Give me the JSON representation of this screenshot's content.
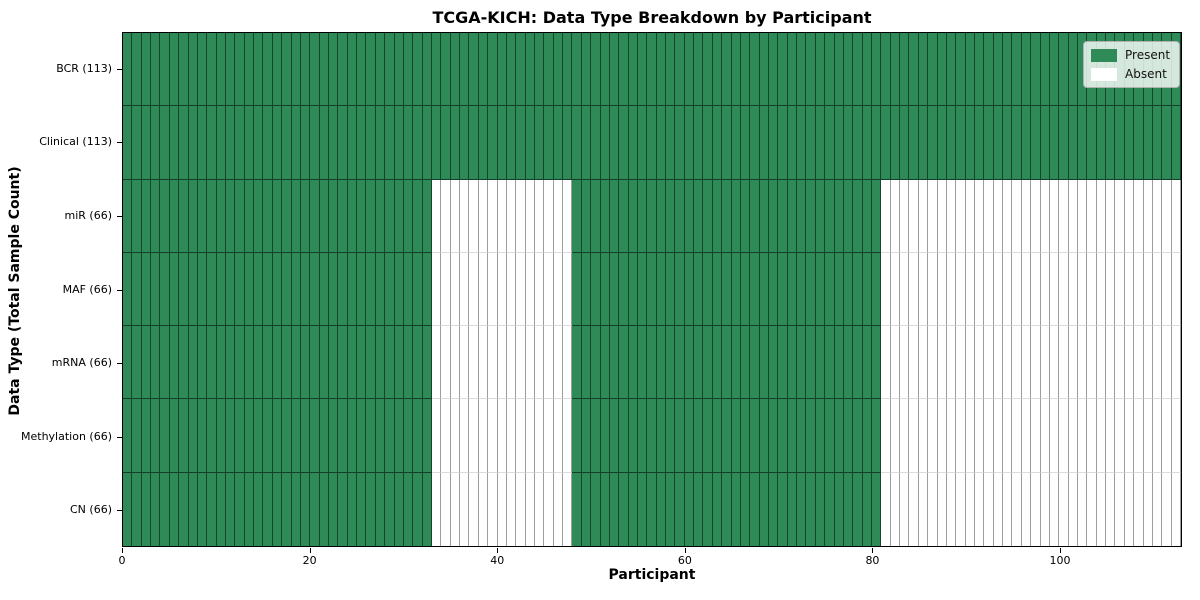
{
  "chart_data": {
    "type": "heatmap",
    "title": "TCGA-KICH: Data Type Breakdown by Participant",
    "xlabel": "Participant",
    "ylabel": "Data Type (Total Sample Count)",
    "n_participants": 113,
    "x_ticks": [
      0,
      20,
      40,
      60,
      80,
      100
    ],
    "rows": [
      {
        "name": "BCR",
        "label": "BCR (113)",
        "total_samples": 113,
        "present_ranges": [
          [
            0,
            113
          ]
        ]
      },
      {
        "name": "Clinical",
        "label": "Clinical (113)",
        "total_samples": 113,
        "present_ranges": [
          [
            0,
            113
          ]
        ]
      },
      {
        "name": "miR",
        "label": "miR (66)",
        "total_samples": 66,
        "present_ranges": [
          [
            0,
            33
          ],
          [
            48,
            81
          ]
        ]
      },
      {
        "name": "MAF",
        "label": "MAF (66)",
        "total_samples": 66,
        "present_ranges": [
          [
            0,
            33
          ],
          [
            48,
            81
          ]
        ]
      },
      {
        "name": "mRNA",
        "label": "mRNA (66)",
        "total_samples": 66,
        "present_ranges": [
          [
            0,
            33
          ],
          [
            48,
            81
          ]
        ]
      },
      {
        "name": "Methylation",
        "label": "Methylation (66)",
        "total_samples": 66,
        "present_ranges": [
          [
            0,
            33
          ],
          [
            48,
            81
          ]
        ]
      },
      {
        "name": "CN",
        "label": "CN (66)",
        "total_samples": 66,
        "present_ranges": [
          [
            0,
            33
          ],
          [
            48,
            81
          ]
        ]
      }
    ],
    "legend": [
      {
        "label": "Present",
        "color": "#2e8b57"
      },
      {
        "label": "Absent",
        "color": "#ffffff"
      }
    ],
    "colors": {
      "present": "#2e8b57",
      "absent": "#ffffff",
      "frame": "#000000"
    },
    "layout": {
      "legend_position": "upper right",
      "grid": "cell-borders"
    }
  }
}
